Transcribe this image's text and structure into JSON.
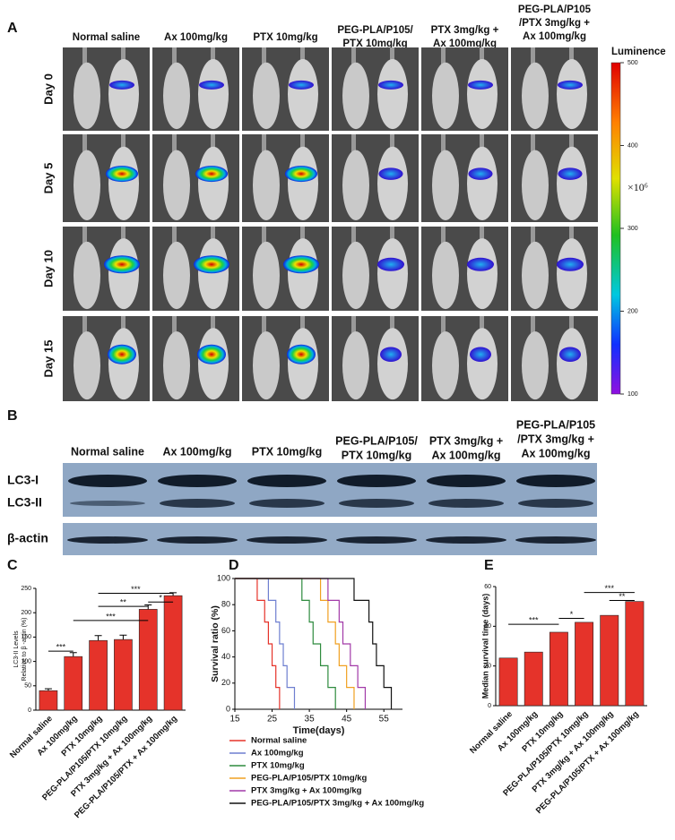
{
  "panels": {
    "A": {
      "letter": "A",
      "columns": [
        [
          "Normal saline"
        ],
        [
          "Ax 100mg/kg"
        ],
        [
          "PTX 10mg/kg"
        ],
        [
          "PEG-PLA/P105/",
          "PTX 10mg/kg"
        ],
        [
          "PTX 3mg/kg +",
          "Ax 100mg/kg"
        ],
        [
          "PEG-PLA/P105",
          "/PTX 3mg/kg +",
          "Ax 100mg/kg"
        ]
      ],
      "rows": [
        "Day 0",
        "Day 5",
        "Day 10",
        "Day 15"
      ],
      "colorbar": {
        "label": "Luminence",
        "unit": "×10⁶",
        "lim": [
          100,
          500
        ],
        "ticks": [
          100,
          200,
          300,
          400,
          500
        ]
      }
    },
    "B": {
      "letter": "B",
      "columns": [
        [
          "Normal saline"
        ],
        [
          "Ax 100mg/kg"
        ],
        [
          "PTX 10mg/kg"
        ],
        [
          "PEG-PLA/P105/",
          "PTX 10mg/kg"
        ],
        [
          "PTX 3mg/kg +",
          "Ax 100mg/kg"
        ],
        [
          "PEG-PLA/P105",
          "/PTX 3mg/kg +",
          "Ax 100mg/kg"
        ]
      ],
      "bands": [
        "LC3-I",
        "LC3-II",
        "β-actin"
      ]
    }
  },
  "chart_data": [
    {
      "label": "C",
      "type": "bar",
      "ylabel": [
        "LC3-II Levels",
        "Relative to β -actin (%)"
      ],
      "categories": [
        "Normal saline",
        "Ax 100mg/kg",
        "PTX 10mg/kg",
        "PEG-PLA/P105/PTX 10mg/kg",
        "PTX 3mg/kg + Ax 100mg/kg",
        "PEG-PLA/P105/PTX + Ax 100mg/kg"
      ],
      "values": [
        40,
        110,
        143,
        145,
        207,
        235
      ],
      "errors": [
        4,
        8,
        10,
        9,
        9,
        6
      ],
      "color": "#e5332a",
      "ylim": [
        0,
        250
      ],
      "yticks": [
        0,
        50,
        100,
        150,
        200,
        250
      ],
      "annotations": [
        "***",
        "***",
        "**",
        "*",
        "***"
      ]
    },
    {
      "label": "D",
      "type": "step",
      "ylabel": "Survival ratio (%)",
      "xlabel": "Time(days)",
      "xlim": [
        15,
        60
      ],
      "xticks": [
        15,
        25,
        35,
        45,
        55
      ],
      "ylim": [
        0,
        100
      ],
      "yticks": [
        0,
        20,
        40,
        60,
        80,
        100
      ],
      "series": [
        {
          "name": "Normal saline",
          "color": "#e5332a",
          "x": [
            15,
            21,
            23,
            24,
            25,
            26,
            27
          ],
          "values": [
            100,
            83.3,
            66.7,
            50,
            33.3,
            16.7,
            0
          ]
        },
        {
          "name": "Ax 100mg/kg",
          "color": "#6e7fd0",
          "x": [
            15,
            24,
            26,
            27,
            28,
            29,
            31
          ],
          "values": [
            100,
            83.3,
            66.7,
            50,
            33.3,
            16.7,
            0
          ]
        },
        {
          "name": "PTX 10mg/kg",
          "color": "#2e8b3e",
          "x": [
            15,
            33,
            35,
            36,
            38,
            40,
            42
          ],
          "values": [
            100,
            83.3,
            66.7,
            50,
            33.3,
            16.7,
            0
          ]
        },
        {
          "name": "PEG-PLA/P105/PTX 10mg/kg",
          "color": "#f0a020",
          "x": [
            15,
            38,
            40,
            42,
            43,
            45,
            47
          ],
          "values": [
            100,
            83.3,
            66.7,
            50,
            33.3,
            16.7,
            0
          ]
        },
        {
          "name": "PTX 3mg/kg + Ax 100mg/kg",
          "color": "#a23aa8",
          "x": [
            15,
            40,
            43,
            44,
            46,
            48,
            50
          ],
          "values": [
            100,
            83.3,
            66.7,
            50,
            33.3,
            16.7,
            0
          ]
        },
        {
          "name": "PEG-PLA/P105/PTX 3mg/kg + Ax 100mg/kg",
          "color": "#111111",
          "x": [
            15,
            47,
            51,
            52,
            53,
            55,
            57
          ],
          "values": [
            100,
            83.3,
            66.7,
            50,
            33.3,
            16.7,
            0
          ]
        }
      ]
    },
    {
      "label": "E",
      "type": "bar",
      "ylabel": [
        "Median survival time (days)"
      ],
      "categories": [
        "Normal saline",
        "Ax 100mg/kg",
        "PTX 10mg/kg",
        "PEG-PLA/P105/PTX 10mg/kg",
        "PTX 3mg/kg + Ax 100mg/kg",
        "PEG-PLA/P105/PTX + Ax 100mg/kg"
      ],
      "values": [
        24,
        27,
        37,
        42,
        45.5,
        52.5
      ],
      "color": "#e5332a",
      "ylim": [
        0,
        60
      ],
      "yticks": [
        0,
        20,
        40,
        60
      ],
      "annotations": [
        "***",
        "*",
        "***",
        "**"
      ]
    }
  ]
}
